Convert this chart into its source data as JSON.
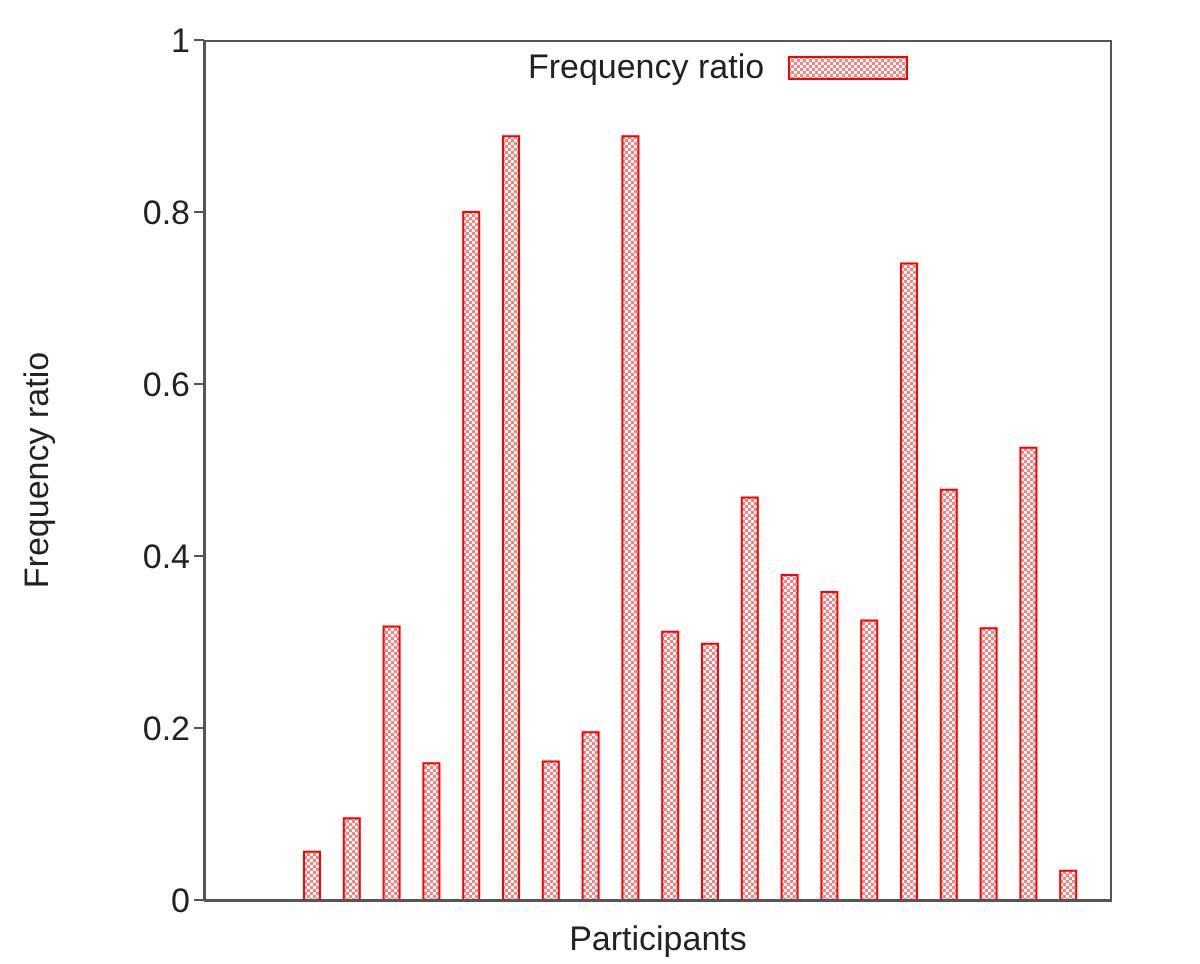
{
  "chart_data": {
    "type": "bar",
    "xlabel": "Participants",
    "ylabel": "Frequency ratio",
    "categories": [
      null,
      null,
      null,
      null,
      null,
      null,
      null,
      null,
      null,
      null,
      null,
      null,
      null,
      null,
      null,
      null,
      null,
      null,
      null,
      null
    ],
    "series": [
      {
        "name": "Frequency ratio",
        "color": "#ff0000",
        "values": [
          0.056,
          0.095,
          0.318,
          0.159,
          0.8,
          0.888,
          0.161,
          0.195,
          0.888,
          0.312,
          0.298,
          0.468,
          0.378,
          0.358,
          0.325,
          0.74,
          0.477,
          0.316,
          0.526,
          0.034
        ]
      }
    ],
    "ylim": [
      0,
      1
    ],
    "yticks": [
      0,
      0.2,
      0.4,
      0.6,
      0.8,
      1
    ],
    "legend": "top",
    "grid": false
  }
}
